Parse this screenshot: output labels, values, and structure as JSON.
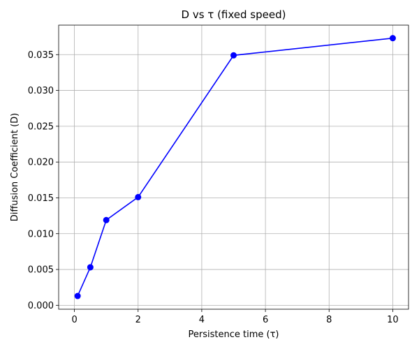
{
  "chart_data": {
    "type": "line",
    "title": "D vs τ (fixed speed)",
    "xlabel": "Persistence time (τ)",
    "ylabel": "Diffusion Coefficient (D)",
    "xlim": [
      -0.4955,
      10.4955
    ],
    "ylim": [
      -0.00055,
      0.03912
    ],
    "xticks": [
      0,
      2,
      4,
      6,
      8,
      10
    ],
    "xtick_labels": [
      "0",
      "2",
      "4",
      "6",
      "8",
      "10"
    ],
    "yticks": [
      0.0,
      0.005,
      0.01,
      0.015,
      0.02,
      0.025,
      0.03,
      0.035
    ],
    "ytick_labels": [
      "0.000",
      "0.005",
      "0.010",
      "0.015",
      "0.020",
      "0.025",
      "0.030",
      "0.035"
    ],
    "grid": true,
    "series": [
      {
        "color": "#0000ff",
        "marker": "circle",
        "x": [
          0.1,
          0.5,
          1,
          2,
          5,
          10
        ],
        "y": [
          0.0013,
          0.0053,
          0.0119,
          0.0151,
          0.0349,
          0.0373
        ]
      }
    ]
  }
}
